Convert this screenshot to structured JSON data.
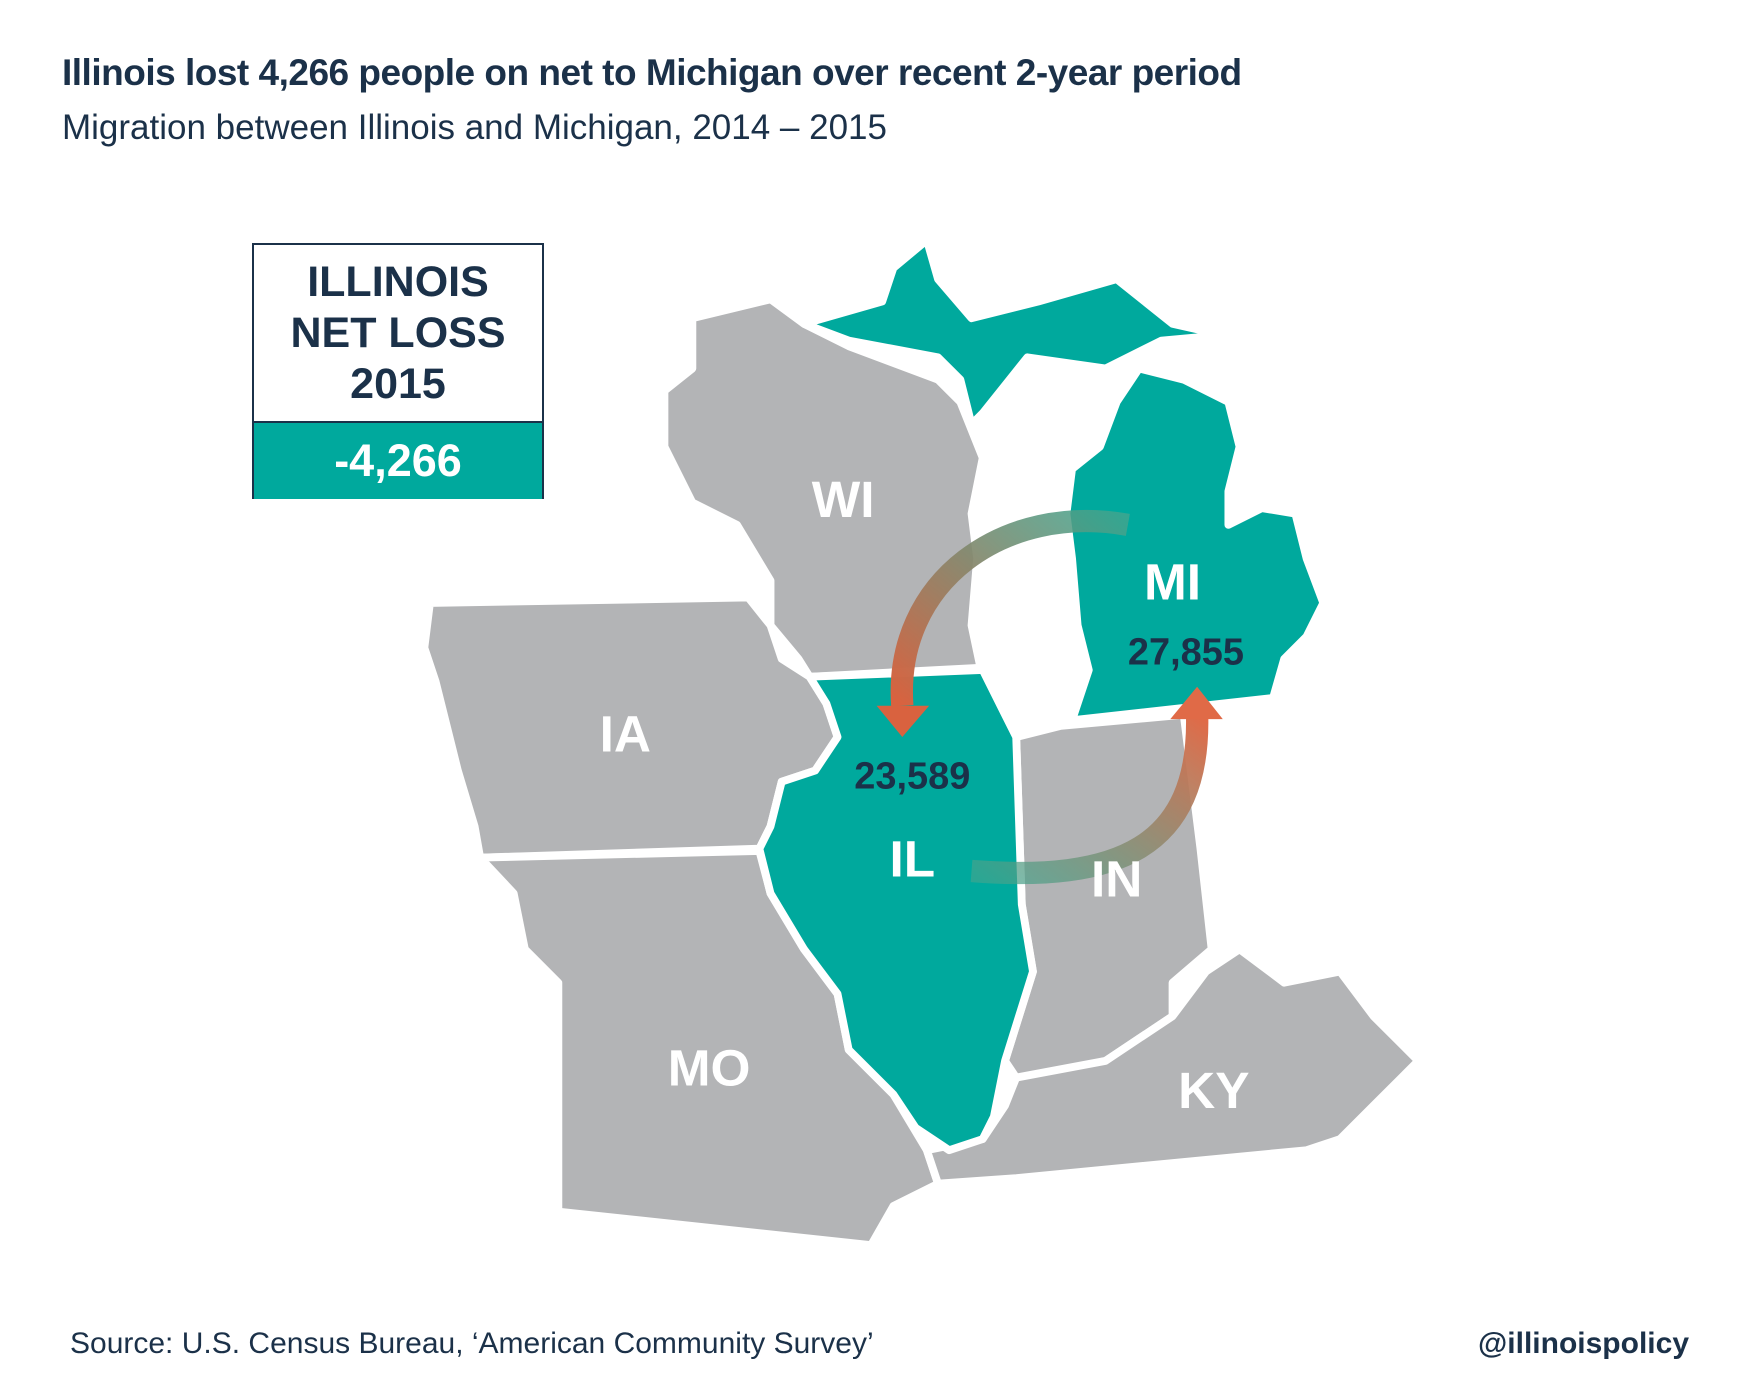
{
  "title": "Illinois lost 4,266 people on net to Michigan over recent 2-year period",
  "subtitle": "Migration between Illinois and Michigan, 2014 – 2015",
  "summary_box": {
    "line1": "ILLINOIS",
    "line2": "NET LOSS",
    "line3": "2015",
    "value": "-4,266"
  },
  "states": {
    "WI": "WI",
    "MI": "MI",
    "IA": "IA",
    "IL": "IL",
    "IN": "IN",
    "MO": "MO",
    "KY": "KY"
  },
  "flows": {
    "mi_to_il": "23,589",
    "il_to_mi": "27,855"
  },
  "colors": {
    "highlight": "#00a99d",
    "other": "#b3b4b6",
    "text": "#1b3149",
    "outflow_arrow": "#e06a47",
    "inflow_arrow": "#3f9e8a"
  },
  "source": "Source: U.S. Census Bureau, ‘American Community Survey’",
  "handle": "@illinoispolicy"
}
